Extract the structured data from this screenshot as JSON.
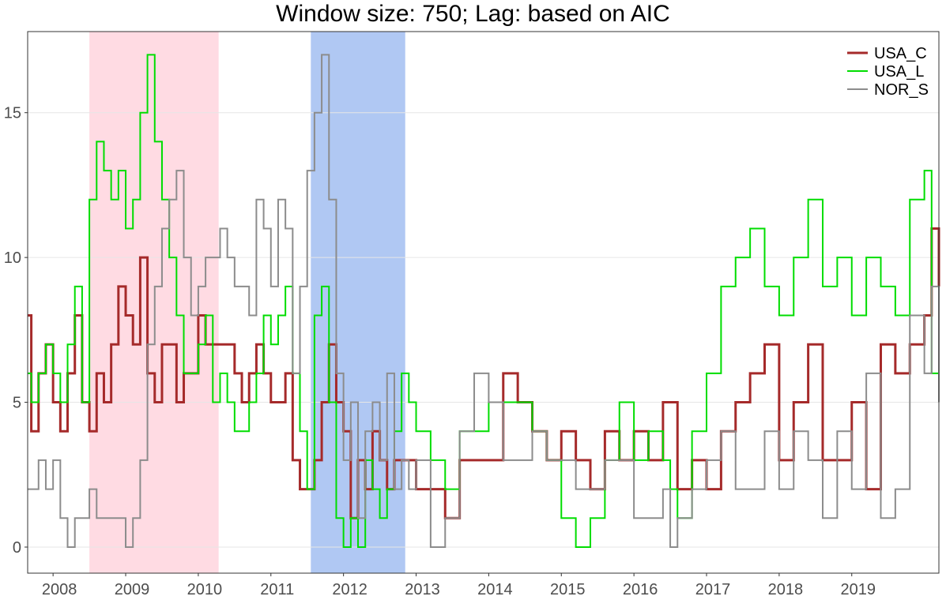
{
  "chart_data": {
    "type": "line",
    "title": "Window size: 750; Lag: based on AIC",
    "xlabel": "",
    "ylabel": "",
    "x_range": [
      2007.65,
      2020.2
    ],
    "ylim": [
      -0.9,
      17.8
    ],
    "x_ticks": [
      {
        "value": 2008.0,
        "label": "2008"
      },
      {
        "value": 2009.0,
        "label": "2009"
      },
      {
        "value": 2010.0,
        "label": "2010"
      },
      {
        "value": 2011.0,
        "label": "2011"
      },
      {
        "value": 2012.0,
        "label": "2012"
      },
      {
        "value": 2013.0,
        "label": "2013"
      },
      {
        "value": 2014.0,
        "label": "2014"
      },
      {
        "value": 2015.0,
        "label": "2015"
      },
      {
        "value": 2016.0,
        "label": "2016"
      },
      {
        "value": 2017.0,
        "label": "2017"
      },
      {
        "value": 2018.0,
        "label": "2018"
      },
      {
        "value": 2019.0,
        "label": "2019"
      }
    ],
    "y_ticks": [
      0,
      5,
      10,
      15
    ],
    "grid": true,
    "legend_position": "top-right",
    "shaded_periods": [
      {
        "start": 2008.5,
        "end": 2010.28,
        "color": "#ffdbe3"
      },
      {
        "start": 2011.55,
        "end": 2012.85,
        "color": "#b0c8f3"
      }
    ],
    "series": [
      {
        "name": "USA_C",
        "color": "#a52a2a",
        "x": [
          2007.65,
          2007.7,
          2007.8,
          2007.9,
          2008.0,
          2008.1,
          2008.2,
          2008.3,
          2008.4,
          2008.5,
          2008.6,
          2008.7,
          2008.8,
          2008.9,
          2009.0,
          2009.1,
          2009.2,
          2009.3,
          2009.4,
          2009.5,
          2009.6,
          2009.7,
          2009.8,
          2009.9,
          2010.0,
          2010.1,
          2010.2,
          2010.3,
          2010.4,
          2010.5,
          2010.6,
          2010.7,
          2010.8,
          2010.9,
          2011.0,
          2011.1,
          2011.2,
          2011.3,
          2011.4,
          2011.5,
          2011.6,
          2011.7,
          2011.8,
          2011.9,
          2012.0,
          2012.1,
          2012.2,
          2012.3,
          2012.4,
          2012.5,
          2012.6,
          2012.7,
          2012.8,
          2012.9,
          2013.0,
          2013.2,
          2013.4,
          2013.6,
          2013.8,
          2014.0,
          2014.2,
          2014.4,
          2014.6,
          2014.8,
          2015.0,
          2015.2,
          2015.4,
          2015.6,
          2015.8,
          2016.0,
          2016.2,
          2016.4,
          2016.5,
          2016.6,
          2016.8,
          2017.0,
          2017.2,
          2017.4,
          2017.6,
          2017.8,
          2018.0,
          2018.2,
          2018.4,
          2018.6,
          2018.8,
          2019.0,
          2019.2,
          2019.4,
          2019.6,
          2019.8,
          2020.0,
          2020.1,
          2020.2
        ],
        "values": [
          8,
          4,
          6,
          7,
          5,
          4,
          6,
          8,
          5,
          4,
          6,
          5,
          7,
          9,
          8,
          7,
          10,
          6,
          5,
          7,
          7,
          5,
          6,
          6,
          8,
          7,
          7,
          7,
          7,
          6,
          5,
          6,
          7,
          6,
          5,
          5,
          6,
          3,
          2,
          2,
          3,
          5,
          7,
          5,
          4,
          1,
          3,
          2,
          4,
          3,
          2,
          3,
          3,
          3,
          2,
          2,
          1,
          3,
          3,
          3,
          6,
          5,
          4,
          3,
          4,
          3,
          2,
          4,
          3,
          4,
          3,
          5,
          5,
          2,
          3,
          2,
          4,
          5,
          6,
          7,
          3,
          5,
          7,
          3,
          3,
          5,
          2,
          7,
          6,
          7,
          8,
          11,
          9
        ]
      },
      {
        "name": "USA_L",
        "color": "#00dd00",
        "x": [
          2007.65,
          2007.7,
          2007.8,
          2007.9,
          2008.0,
          2008.1,
          2008.2,
          2008.3,
          2008.4,
          2008.5,
          2008.6,
          2008.7,
          2008.8,
          2008.9,
          2009.0,
          2009.1,
          2009.2,
          2009.3,
          2009.4,
          2009.5,
          2009.6,
          2009.7,
          2009.8,
          2009.9,
          2010.0,
          2010.1,
          2010.2,
          2010.3,
          2010.4,
          2010.5,
          2010.6,
          2010.7,
          2010.8,
          2010.9,
          2011.0,
          2011.1,
          2011.2,
          2011.3,
          2011.4,
          2011.5,
          2011.6,
          2011.7,
          2011.8,
          2011.9,
          2012.0,
          2012.1,
          2012.2,
          2012.3,
          2012.4,
          2012.5,
          2012.6,
          2012.7,
          2012.8,
          2012.9,
          2013.0,
          2013.2,
          2013.4,
          2013.6,
          2013.8,
          2014.0,
          2014.2,
          2014.4,
          2014.6,
          2014.8,
          2015.0,
          2015.2,
          2015.4,
          2015.6,
          2015.8,
          2016.0,
          2016.2,
          2016.4,
          2016.5,
          2016.6,
          2016.8,
          2017.0,
          2017.2,
          2017.4,
          2017.6,
          2017.8,
          2018.0,
          2018.2,
          2018.4,
          2018.6,
          2018.8,
          2019.0,
          2019.2,
          2019.4,
          2019.6,
          2019.8,
          2020.0,
          2020.1,
          2020.2
        ],
        "values": [
          6,
          5,
          6,
          7,
          6,
          5,
          7,
          9,
          5,
          12,
          14,
          13,
          12,
          13,
          11,
          12,
          15,
          17,
          14,
          12,
          10,
          8,
          6,
          6,
          7,
          8,
          5,
          6,
          5,
          4,
          4,
          5,
          6,
          8,
          7,
          8,
          9,
          6,
          4,
          2,
          8,
          9,
          5,
          1,
          0,
          1,
          0,
          3,
          2,
          1,
          2,
          4,
          6,
          5,
          4,
          3,
          2,
          4,
          4,
          5,
          5,
          5,
          4,
          3,
          1,
          0,
          1,
          3,
          5,
          3,
          4,
          3,
          2,
          1,
          4,
          6,
          9,
          10,
          11,
          9,
          8,
          10,
          12,
          9,
          10,
          8,
          10,
          9,
          8,
          12,
          13,
          6,
          7
        ]
      },
      {
        "name": "NOR_S",
        "color": "#8c8c8c",
        "x": [
          2007.65,
          2007.7,
          2007.8,
          2007.9,
          2008.0,
          2008.1,
          2008.2,
          2008.3,
          2008.4,
          2008.5,
          2008.6,
          2008.7,
          2008.8,
          2008.9,
          2009.0,
          2009.1,
          2009.2,
          2009.3,
          2009.4,
          2009.5,
          2009.6,
          2009.7,
          2009.8,
          2009.9,
          2010.0,
          2010.1,
          2010.2,
          2010.3,
          2010.4,
          2010.5,
          2010.6,
          2010.7,
          2010.8,
          2010.9,
          2011.0,
          2011.1,
          2011.2,
          2011.3,
          2011.4,
          2011.5,
          2011.6,
          2011.7,
          2011.8,
          2011.9,
          2012.0,
          2012.1,
          2012.2,
          2012.3,
          2012.4,
          2012.5,
          2012.6,
          2012.7,
          2012.8,
          2012.9,
          2013.0,
          2013.2,
          2013.4,
          2013.6,
          2013.8,
          2014.0,
          2014.2,
          2014.4,
          2014.6,
          2014.8,
          2015.0,
          2015.2,
          2015.4,
          2015.6,
          2015.8,
          2016.0,
          2016.2,
          2016.4,
          2016.5,
          2016.6,
          2016.8,
          2017.0,
          2017.2,
          2017.4,
          2017.6,
          2017.8,
          2018.0,
          2018.2,
          2018.4,
          2018.6,
          2018.8,
          2019.0,
          2019.2,
          2019.4,
          2019.6,
          2019.8,
          2020.0,
          2020.1,
          2020.2
        ],
        "values": [
          2,
          2,
          3,
          2,
          3,
          1,
          0,
          1,
          1,
          2,
          1,
          1,
          1,
          1,
          0,
          1,
          3,
          7,
          9,
          11,
          12,
          13,
          10,
          8,
          9,
          10,
          10,
          11,
          10,
          9,
          9,
          8,
          12,
          11,
          9,
          12,
          11,
          6,
          9,
          13,
          15,
          17,
          12,
          6,
          3,
          5,
          1,
          4,
          5,
          3,
          6,
          2,
          3,
          2,
          3,
          0,
          1,
          4,
          6,
          5,
          3,
          3,
          4,
          3,
          3,
          2,
          2,
          3,
          3,
          1,
          1,
          2,
          0,
          1,
          2,
          3,
          4,
          2,
          2,
          4,
          2,
          4,
          3,
          1,
          4,
          2,
          6,
          1,
          2,
          8,
          6,
          9,
          5
        ]
      }
    ]
  }
}
